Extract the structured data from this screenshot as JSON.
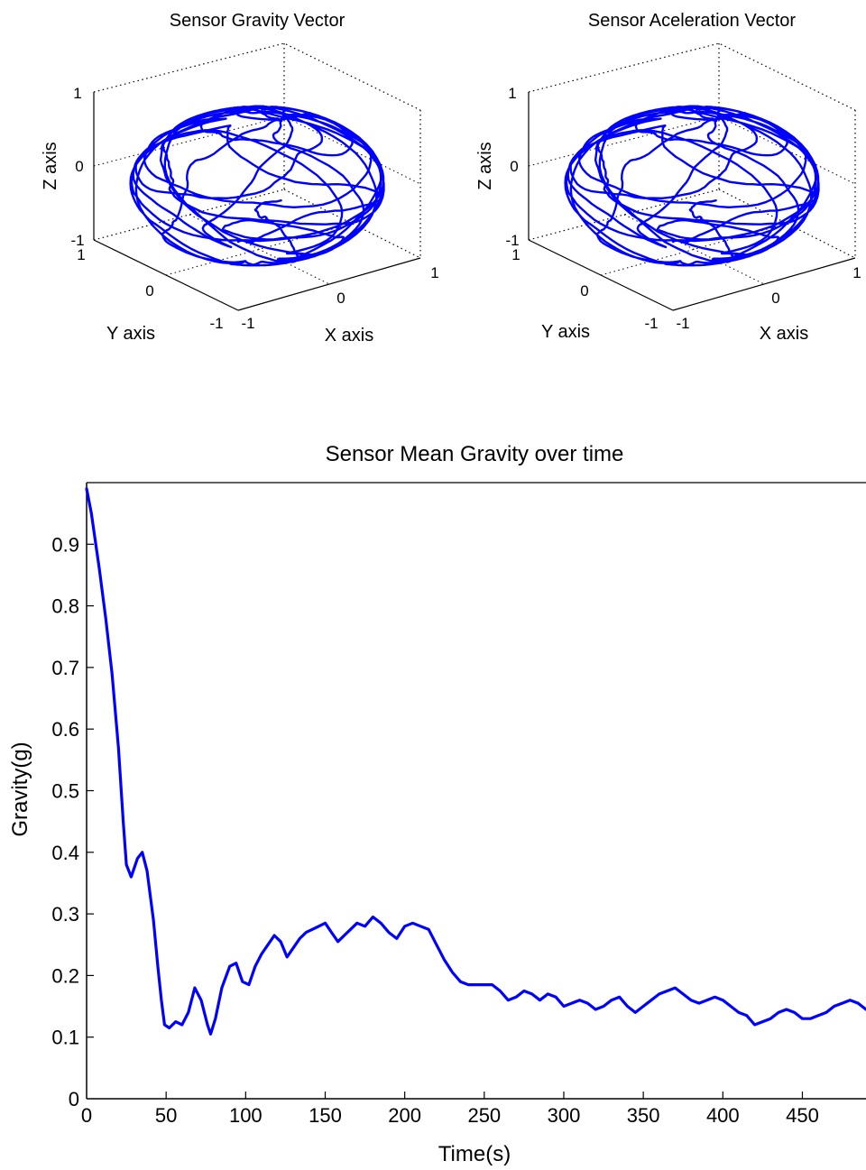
{
  "chart_data": [
    {
      "type": "scatter3d",
      "title": "Sensor Gravity Vector",
      "xlabel": "X axis",
      "ylabel": "Y axis",
      "zlabel": "Z axis",
      "xlim": [
        -1,
        1
      ],
      "ylim": [
        -1,
        1
      ],
      "zlim": [
        -1,
        1
      ],
      "x_ticks": [
        "-1",
        "0",
        "1"
      ],
      "y_ticks": [
        "-1",
        "0",
        "1"
      ],
      "z_ticks": [
        "-1",
        "0",
        "1"
      ],
      "series_color": "#0000ff",
      "description_values": {
        "trajectory_radius": 1
      }
    },
    {
      "type": "scatter3d",
      "title": "Sensor Aceleration Vector",
      "xlabel": "X axis",
      "ylabel": "Y axis",
      "zlabel": "Z axis",
      "xlim": [
        -1,
        1
      ],
      "ylim": [
        -1,
        1
      ],
      "zlim": [
        -1,
        1
      ],
      "x_ticks": [
        "-1",
        "0",
        "1"
      ],
      "y_ticks": [
        "-1",
        "0",
        "1"
      ],
      "z_ticks": [
        "-1",
        "0",
        "1"
      ],
      "series_color": "#0000ff",
      "description_values": {
        "trajectory_radius": 1
      }
    },
    {
      "type": "line",
      "title": "Sensor Mean Gravity over time",
      "xlabel": "Time(s)",
      "ylabel": "Gravity(g)",
      "xlim": [
        0,
        490
      ],
      "ylim": [
        0,
        1.0
      ],
      "x_ticks": [
        0,
        50,
        100,
        150,
        200,
        250,
        300,
        350,
        400,
        450
      ],
      "y_ticks": [
        0,
        0.1,
        0.2,
        0.3,
        0.4,
        0.5,
        0.6,
        0.7,
        0.8,
        0.9
      ],
      "grid": true,
      "series_color": "#0000ff",
      "x": [
        0,
        3,
        8,
        12,
        16,
        20,
        23,
        25,
        28,
        32,
        35,
        38,
        42,
        45,
        47,
        49,
        52,
        56,
        60,
        64,
        68,
        72,
        76,
        78,
        81,
        85,
        90,
        94,
        98,
        102,
        106,
        110,
        114,
        118,
        122,
        126,
        130,
        134,
        138,
        142,
        146,
        150,
        154,
        158,
        162,
        166,
        170,
        175,
        180,
        185,
        190,
        195,
        200,
        205,
        210,
        215,
        220,
        225,
        230,
        235,
        240,
        245,
        250,
        255,
        260,
        265,
        270,
        275,
        280,
        285,
        290,
        295,
        300,
        305,
        310,
        315,
        320,
        325,
        330,
        335,
        340,
        345,
        350,
        355,
        360,
        365,
        370,
        375,
        380,
        385,
        390,
        395,
        400,
        405,
        410,
        415,
        420,
        425,
        430,
        435,
        440,
        445,
        450,
        455,
        460,
        465,
        470,
        475,
        480,
        485,
        490
      ],
      "y": [
        0.99,
        0.95,
        0.86,
        0.78,
        0.69,
        0.57,
        0.45,
        0.38,
        0.36,
        0.39,
        0.4,
        0.37,
        0.29,
        0.21,
        0.16,
        0.12,
        0.115,
        0.125,
        0.12,
        0.14,
        0.18,
        0.16,
        0.12,
        0.105,
        0.13,
        0.18,
        0.215,
        0.22,
        0.19,
        0.185,
        0.215,
        0.235,
        0.25,
        0.265,
        0.255,
        0.23,
        0.245,
        0.26,
        0.27,
        0.275,
        0.28,
        0.285,
        0.27,
        0.255,
        0.265,
        0.275,
        0.285,
        0.28,
        0.295,
        0.285,
        0.27,
        0.26,
        0.28,
        0.285,
        0.28,
        0.275,
        0.25,
        0.225,
        0.205,
        0.19,
        0.185,
        0.185,
        0.185,
        0.185,
        0.175,
        0.16,
        0.165,
        0.175,
        0.17,
        0.16,
        0.17,
        0.165,
        0.15,
        0.155,
        0.16,
        0.155,
        0.145,
        0.15,
        0.16,
        0.165,
        0.15,
        0.14,
        0.15,
        0.16,
        0.17,
        0.175,
        0.18,
        0.17,
        0.16,
        0.155,
        0.16,
        0.165,
        0.16,
        0.15,
        0.14,
        0.135,
        0.12,
        0.125,
        0.13,
        0.14,
        0.145,
        0.14,
        0.13,
        0.13,
        0.135,
        0.14,
        0.15,
        0.155,
        0.16,
        0.155,
        0.145
      ]
    }
  ]
}
